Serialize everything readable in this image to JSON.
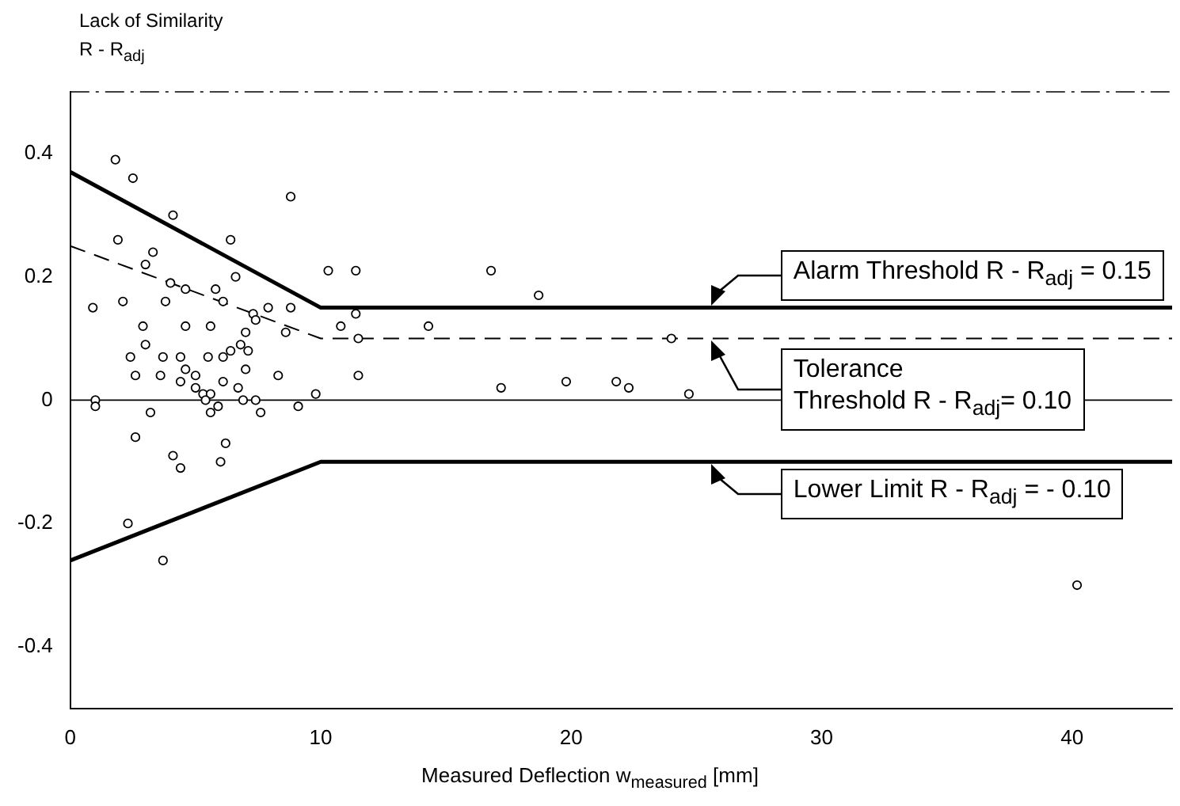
{
  "chart_data": {
    "type": "scatter",
    "ylabel": "Lack of Similarity\nR - R$_{adj}$",
    "xlabel": "Measured Deflection  w$_{measured}$ [mm]",
    "xlim": [
      0,
      44
    ],
    "xticks": [
      0,
      10,
      20,
      30,
      40
    ],
    "ylim": [
      -0.5,
      0.5
    ],
    "yticks": [
      -0.4,
      -0.2,
      0,
      0.2,
      0.4
    ],
    "grid": false,
    "legend": false,
    "marker": "circle",
    "series": [
      {
        "type": "scatter",
        "color": "#000000",
        "x": [
          1.8,
          2.5,
          4.1,
          8.8,
          1.9,
          6.4,
          3.3,
          3.0,
          6.6,
          4.0,
          4.6,
          5.8,
          0.9,
          2.1,
          3.8,
          6.1,
          7.9,
          8.8,
          10.3,
          11.4,
          16.8,
          18.7,
          7.3,
          7.4,
          2.9,
          4.6,
          5.6,
          8.6,
          10.8,
          11.4,
          11.5,
          14.3,
          24.0,
          7.0,
          6.8,
          7.1,
          3.0,
          2.4,
          3.7,
          4.4,
          4.6,
          5.5,
          6.1,
          6.4,
          7.0,
          2.6,
          3.6,
          4.4,
          5.0,
          6.1,
          6.7,
          8.3,
          11.5,
          9.8,
          5.0,
          5.3,
          5.6,
          5.4,
          5.9,
          5.6,
          6.9,
          7.4,
          7.6,
          9.1,
          1.0,
          1.0,
          3.2,
          17.2,
          19.8,
          21.8,
          22.3,
          24.7,
          2.6,
          6.2,
          6.0,
          4.1,
          4.4,
          2.3,
          3.7,
          40.2
        ],
        "values": [
          0.39,
          0.36,
          0.3,
          0.33,
          0.26,
          0.26,
          0.24,
          0.22,
          0.2,
          0.19,
          0.18,
          0.18,
          0.15,
          0.16,
          0.16,
          0.16,
          0.15,
          0.15,
          0.21,
          0.21,
          0.21,
          0.17,
          0.14,
          0.13,
          0.12,
          0.12,
          0.12,
          0.11,
          0.12,
          0.14,
          0.1,
          0.12,
          0.1,
          0.11,
          0.09,
          0.08,
          0.09,
          0.07,
          0.07,
          0.07,
          0.05,
          0.07,
          0.07,
          0.08,
          0.05,
          0.04,
          0.04,
          0.03,
          0.04,
          0.03,
          0.02,
          0.04,
          0.04,
          0.01,
          0.02,
          0.01,
          0.01,
          0.0,
          -0.01,
          -0.02,
          0.0,
          0.0,
          -0.02,
          -0.01,
          0.0,
          -0.01,
          -0.02,
          0.02,
          0.03,
          0.03,
          0.02,
          0.01,
          -0.06,
          -0.07,
          -0.1,
          -0.09,
          -0.11,
          -0.2,
          -0.26,
          -0.3
        ]
      },
      {
        "type": "line",
        "color": "#000000",
        "line_style": "solid",
        "marker": "none",
        "x": [
          0,
          10,
          44
        ],
        "values": [
          0.37,
          0.15,
          0.15
        ]
      },
      {
        "type": "line",
        "color": "#000000",
        "line_style": "dashed",
        "marker": "none",
        "x": [
          0,
          10,
          44
        ],
        "values": [
          0.25,
          0.1,
          0.1
        ]
      },
      {
        "type": "line",
        "color": "#000000",
        "line_style": "solid",
        "marker": "none",
        "x": [
          0,
          10,
          44
        ],
        "values": [
          -0.26,
          -0.1,
          -0.1
        ]
      }
    ],
    "ref_lines": [
      {
        "axis": "y",
        "value": 0,
        "color": "#000000"
      }
    ],
    "annotations": [
      "Alarm Threshold  R - R$_{adj}$ = 0.15",
      "Tolerance\nThreshold  R - R$_{adj}$= 0.10",
      "Lower Limit  R - R$_{adj}$ = - 0.10"
    ]
  }
}
